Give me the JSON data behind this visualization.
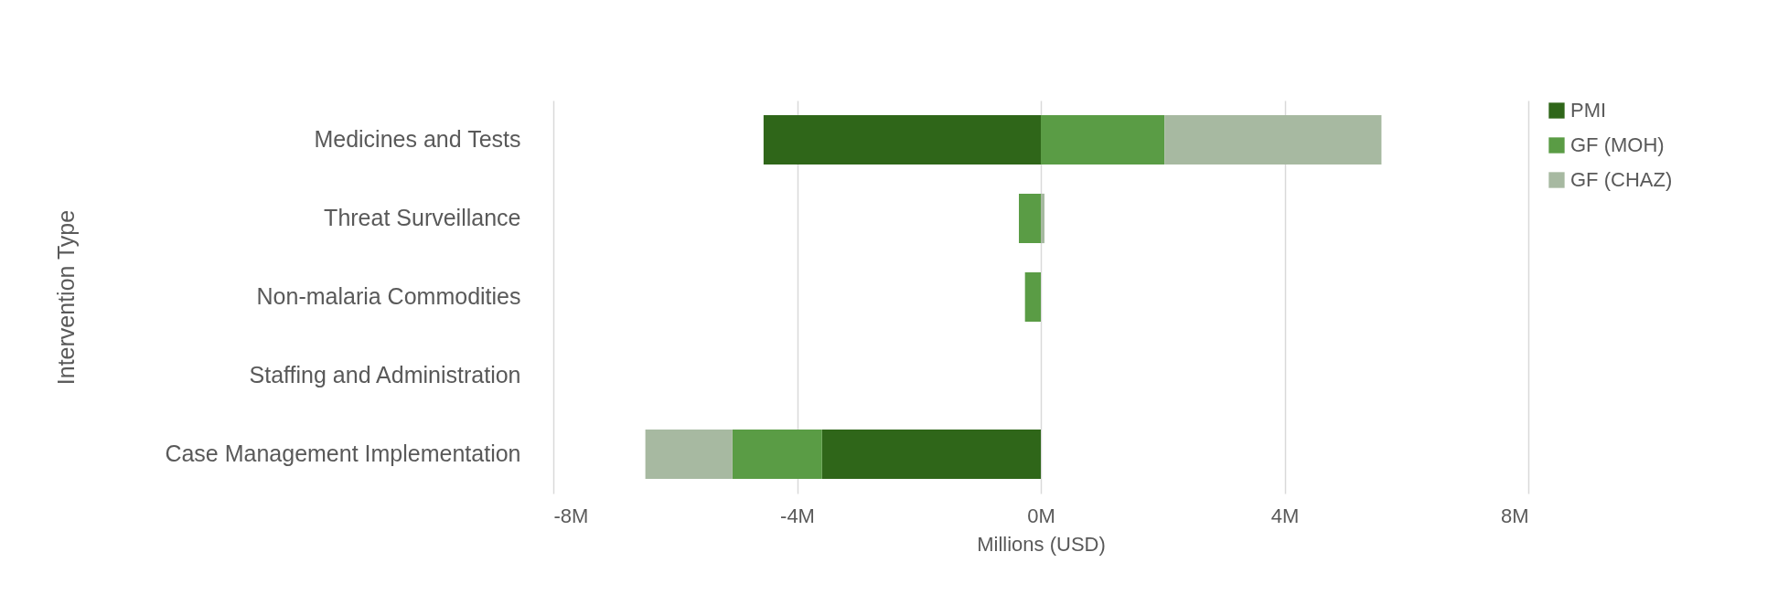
{
  "chart_data": {
    "type": "bar",
    "orientation": "horizontal",
    "stacked": true,
    "ylabel": "Intervention Type",
    "xlabel": "Millions (USD)",
    "categories": [
      "Medicines and Tests",
      "Threat Surveillance",
      "Non-malaria Commodities",
      "Staffing and Administration",
      "Case Management Implementation"
    ],
    "series": [
      {
        "name": "PMI",
        "color": "#2f6619",
        "values": [
          -4.55,
          null,
          null,
          null,
          -3.59
        ]
      },
      {
        "name": "GF (MOH)",
        "color": "#5a9c45",
        "values": [
          2.03,
          -0.36,
          -0.26,
          null,
          -1.47
        ]
      },
      {
        "name": "GF (CHAZ)",
        "color": "#a7b9a1",
        "values": [
          3.56,
          0.06,
          null,
          null,
          -1.43
        ]
      }
    ],
    "xlim": [
      -8,
      8
    ],
    "xticks": [
      {
        "value": -8,
        "label": "-8M"
      },
      {
        "value": -4,
        "label": "-4M"
      },
      {
        "value": 0,
        "label": "0M"
      },
      {
        "value": 4,
        "label": "4M"
      },
      {
        "value": 8,
        "label": "8M"
      }
    ],
    "grid": "x",
    "legend": "right"
  }
}
